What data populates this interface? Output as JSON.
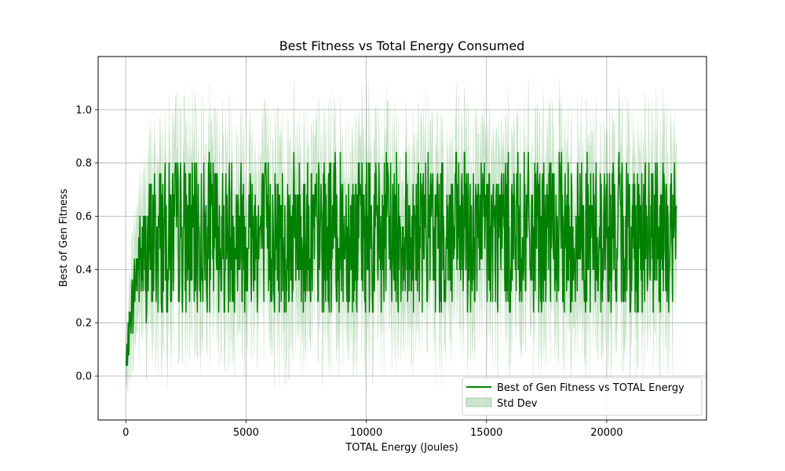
{
  "chart_data": {
    "type": "line",
    "title": "Best Fitness vs Total Energy Consumed",
    "xlabel": "TOTAL Energy (Joules)",
    "ylabel": "Best of Gen Fitness",
    "xlim": [
      -1150,
      24150
    ],
    "ylim": [
      -0.165,
      1.2
    ],
    "x_ticks": [
      0,
      5000,
      10000,
      15000,
      20000
    ],
    "x_tick_labels": [
      "0",
      "5000",
      "10000",
      "15000",
      "20000"
    ],
    "y_ticks": [
      0.0,
      0.2,
      0.4,
      0.6,
      0.8,
      1.0
    ],
    "y_tick_labels": [
      "0.0",
      "0.2",
      "0.4",
      "0.6",
      "0.8",
      "1.0"
    ],
    "grid": true,
    "legend_position": "lower-right",
    "series": [
      {
        "name": "Best of Gen Fitness vs TOTAL Energy",
        "color": "#008000",
        "x": [
          0,
          100,
          200,
          300,
          400,
          500,
          600,
          800,
          1000,
          1200,
          1500,
          1800,
          2100,
          2500,
          3000,
          3500,
          4000,
          4500,
          5000,
          5500,
          6000,
          6500,
          7000,
          7500,
          8000,
          8500,
          9000,
          9500,
          10000,
          10500,
          11000,
          11500,
          12000,
          12500,
          13000,
          13500,
          14000,
          14500,
          15000,
          15500,
          16000,
          16500,
          17000,
          17500,
          18000,
          18500,
          19000,
          19500,
          20000,
          20500,
          21000,
          21500,
          22000,
          22500,
          22900
        ],
        "y": [
          0.04,
          0.12,
          0.24,
          0.28,
          0.36,
          0.4,
          0.44,
          0.44,
          0.48,
          0.5,
          0.52,
          0.52,
          0.54,
          0.52,
          0.52,
          0.54,
          0.52,
          0.54,
          0.54,
          0.52,
          0.54,
          0.52,
          0.54,
          0.54,
          0.52,
          0.52,
          0.54,
          0.52,
          0.54,
          0.52,
          0.54,
          0.54,
          0.52,
          0.54,
          0.52,
          0.52,
          0.54,
          0.52,
          0.54,
          0.52,
          0.54,
          0.54,
          0.52,
          0.52,
          0.54,
          0.52,
          0.54,
          0.52,
          0.52,
          0.54,
          0.52,
          0.54,
          0.52,
          0.52,
          0.54
        ],
        "band": [
          0.06,
          0.1,
          0.14,
          0.16,
          0.18,
          0.2,
          0.2,
          0.2,
          0.2,
          0.22,
          0.22,
          0.22,
          0.22,
          0.24,
          0.22,
          0.22,
          0.24,
          0.22,
          0.22,
          0.22,
          0.22,
          0.24,
          0.22,
          0.22,
          0.22,
          0.22,
          0.22,
          0.22,
          0.24,
          0.22,
          0.22,
          0.22,
          0.22,
          0.22,
          0.22,
          0.22,
          0.22,
          0.24,
          0.22,
          0.22,
          0.22,
          0.22,
          0.22,
          0.22,
          0.22,
          0.22,
          0.24,
          0.22,
          0.22,
          0.22,
          0.22,
          0.22,
          0.22,
          0.24,
          0.22
        ],
        "fluctuation": {
          "high": 0.84,
          "low": 0.12,
          "step": 0.04,
          "points": 1400,
          "seed": 7
        }
      }
    ],
    "legend": [
      {
        "label": "Best of Gen Fitness vs TOTAL Energy",
        "kind": "line",
        "color": "#008000"
      },
      {
        "label": "Std Dev",
        "kind": "patch",
        "color": "#008000",
        "alpha": 0.2
      }
    ]
  }
}
